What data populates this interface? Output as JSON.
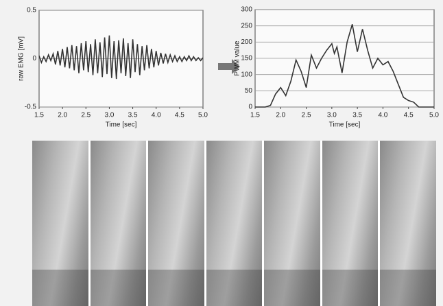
{
  "chart_data": [
    {
      "type": "line",
      "y_label": "raw EMG [mV]",
      "x_label": "Time [sec]",
      "color": "#333333",
      "grid": true,
      "xlim": [
        1.5,
        5
      ],
      "ylim": [
        -0.5,
        0.5
      ],
      "xticks": [
        1.5,
        {
          "value": 2,
          "label": "2.0"
        },
        2.5,
        {
          "value": 3,
          "label": "3.0"
        },
        3.5,
        {
          "value": 4,
          "label": "4.0"
        },
        4.5,
        {
          "value": 5,
          "label": "5.0"
        }
      ],
      "yticks": [
        -0.5,
        0,
        0.5
      ],
      "x": [
        1.5,
        1.55,
        1.6,
        1.65,
        1.7,
        1.75,
        1.8,
        1.85,
        1.9,
        1.95,
        2,
        2.05,
        2.1,
        2.15,
        2.2,
        2.25,
        2.3,
        2.35,
        2.4,
        2.45,
        2.5,
        2.55,
        2.6,
        2.65,
        2.7,
        2.75,
        2.8,
        2.85,
        2.9,
        2.95,
        3,
        3.05,
        3.1,
        3.15,
        3.2,
        3.25,
        3.3,
        3.35,
        3.4,
        3.45,
        3.5,
        3.55,
        3.6,
        3.65,
        3.7,
        3.75,
        3.8,
        3.85,
        3.9,
        3.95,
        4,
        4.05,
        4.1,
        4.15,
        4.2,
        4.25,
        4.3,
        4.35,
        4.4,
        4.45,
        4.5,
        4.55,
        4.6,
        4.65,
        4.7,
        4.75,
        4.8,
        4.85,
        4.9,
        4.95,
        5
      ],
      "values": [
        0.03,
        -0.04,
        0.02,
        -0.03,
        0.04,
        -0.02,
        0.05,
        -0.06,
        0.08,
        -0.07,
        0.1,
        -0.09,
        0.12,
        -0.1,
        0.14,
        -0.12,
        0.13,
        -0.15,
        0.16,
        -0.12,
        0.18,
        -0.14,
        0.15,
        -0.17,
        0.2,
        -0.15,
        0.17,
        -0.19,
        0.22,
        -0.16,
        0.24,
        -0.2,
        0.18,
        -0.21,
        0.19,
        -0.15,
        0.21,
        -0.18,
        0.16,
        -0.2,
        0.2,
        -0.14,
        0.15,
        -0.17,
        0.13,
        -0.12,
        0.14,
        -0.1,
        0.1,
        -0.09,
        0.08,
        -0.07,
        0.06,
        -0.05,
        0.05,
        -0.04,
        0.04,
        -0.03,
        0.03,
        -0.03,
        0.02,
        -0.03,
        0.02,
        -0.02,
        0.03,
        -0.02,
        0.02,
        -0.02,
        0.01,
        -0.02,
        0.01
      ]
    },
    {
      "type": "line",
      "y_label": "PWM value",
      "x_label": "Time [sec]",
      "color": "#333333",
      "grid": true,
      "xlim": [
        1.5,
        5
      ],
      "ylim": [
        0,
        300
      ],
      "xticks": [
        1.5,
        {
          "value": 2,
          "label": "2.0"
        },
        2.5,
        {
          "value": 3,
          "label": "3.0"
        },
        3.5,
        {
          "value": 4,
          "label": "4.0"
        },
        4.5,
        {
          "value": 5,
          "label": "5.0"
        }
      ],
      "yticks": [
        0,
        50,
        100,
        150,
        200,
        250,
        300
      ],
      "x": [
        1.5,
        1.7,
        1.8,
        1.9,
        2,
        2.1,
        2.2,
        2.3,
        2.4,
        2.5,
        2.6,
        2.7,
        2.8,
        2.9,
        3,
        3.05,
        3.1,
        3.2,
        3.3,
        3.4,
        3.5,
        3.6,
        3.7,
        3.8,
        3.9,
        4,
        4.1,
        4.2,
        4.3,
        4.4,
        4.5,
        4.6,
        4.7,
        5
      ],
      "values": [
        0,
        0,
        5,
        40,
        60,
        35,
        80,
        145,
        110,
        60,
        160,
        120,
        150,
        175,
        195,
        165,
        185,
        105,
        200,
        255,
        170,
        240,
        175,
        120,
        150,
        130,
        140,
        110,
        70,
        30,
        20,
        15,
        0,
        0
      ]
    }
  ]
}
